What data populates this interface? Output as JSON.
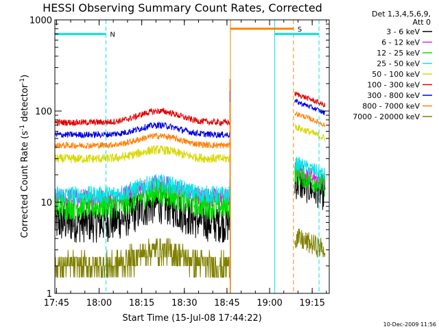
{
  "chart_data": {
    "type": "line",
    "title": "HESSI Observing Summary Count Rates, Corrected",
    "xlabel": "Start Time (15-Jul-08 17:44:22)",
    "ylabel_main": "Corrected Count Rate (s",
    "ylabel_sup1": "-1",
    "ylabel_mid": " detector",
    "ylabel_sup2": "-1",
    "ylabel_end": ")",
    "x_range_min": [
      17.7406,
      19.35
    ],
    "y_log": true,
    "ylim": [
      1,
      1000
    ],
    "x_ticks": [
      {
        "v": 17.75,
        "label": "17:45"
      },
      {
        "v": 18.0,
        "label": "18:00"
      },
      {
        "v": 18.25,
        "label": "18:15"
      },
      {
        "v": 18.5,
        "label": "18:30"
      },
      {
        "v": 18.75,
        "label": "18:45"
      },
      {
        "v": 19.0,
        "label": "19:00"
      },
      {
        "v": 19.25,
        "label": "19:15"
      }
    ],
    "y_ticks": [
      {
        "v": 1,
        "label": "1"
      },
      {
        "v": 10,
        "label": "10"
      },
      {
        "v": 100,
        "label": "100"
      },
      {
        "v": 1000,
        "label": "1000"
      }
    ],
    "legend_header": [
      "Det 1,3,4,5,6,9,",
      "Att 0"
    ],
    "series": [
      {
        "name": "3 - 6 keV",
        "color": "#000000",
        "base": 6,
        "amp": 1.6,
        "noise": 0.45,
        "post": 12
      },
      {
        "name": "6 - 12 keV",
        "color": "#e020e0",
        "base": 11,
        "amp": 1.4,
        "noise": 0.22,
        "post": 17
      },
      {
        "name": "12 - 25 keV",
        "color": "#00e000",
        "base": 9,
        "amp": 1.4,
        "noise": 0.3,
        "post": 15
      },
      {
        "name": "25 - 50 keV",
        "color": "#00e5e5",
        "base": 12,
        "amp": 1.35,
        "noise": 0.2,
        "post": 20
      },
      {
        "name": "50 - 100 keV",
        "color": "#d8d800",
        "base": 30,
        "amp": 1.25,
        "noise": 0.1,
        "post": 50
      },
      {
        "name": "100 - 300 keV",
        "color": "#e00000",
        "base": 75,
        "amp": 1.33,
        "noise": 0.07,
        "post": 115
      },
      {
        "name": "300 - 800 keV",
        "color": "#0000e0",
        "base": 55,
        "amp": 1.27,
        "noise": 0.07,
        "post": 95
      },
      {
        "name": "800 - 7000 keV",
        "color": "#ff8000",
        "base": 42,
        "amp": 1.27,
        "noise": 0.07,
        "post": 70
      },
      {
        "name": "7000 - 20000 keV",
        "color": "#808000",
        "base": 2,
        "amp": 1.5,
        "noise": 0.3,
        "post": 3
      }
    ],
    "flags": [
      {
        "label": "N",
        "color": "#00e5e5",
        "value": 700,
        "x_start": 17.7406,
        "x_end": 18.04
      },
      {
        "label": "S",
        "color": "#ff8000",
        "value": 800,
        "x_start": 18.77,
        "x_end": 19.14
      },
      {
        "label": "",
        "color": "#00e5e5",
        "value": 700,
        "x_start": 19.03,
        "x_end": 19.29
      }
    ],
    "vlines": [
      {
        "x": 18.04,
        "color": "#00e5e5",
        "dash": true
      },
      {
        "x": 18.77,
        "color": "#ff8000",
        "dash": false
      },
      {
        "x": 19.03,
        "color": "#00e5e5",
        "dash": false
      },
      {
        "x": 19.14,
        "color": "#ff8000",
        "dash": true
      },
      {
        "x": 19.29,
        "color": "#00e5e5",
        "dash": true
      }
    ],
    "gap": [
      18.77,
      19.14
    ]
  },
  "footer_date": "10-Dec-2009 11:56"
}
